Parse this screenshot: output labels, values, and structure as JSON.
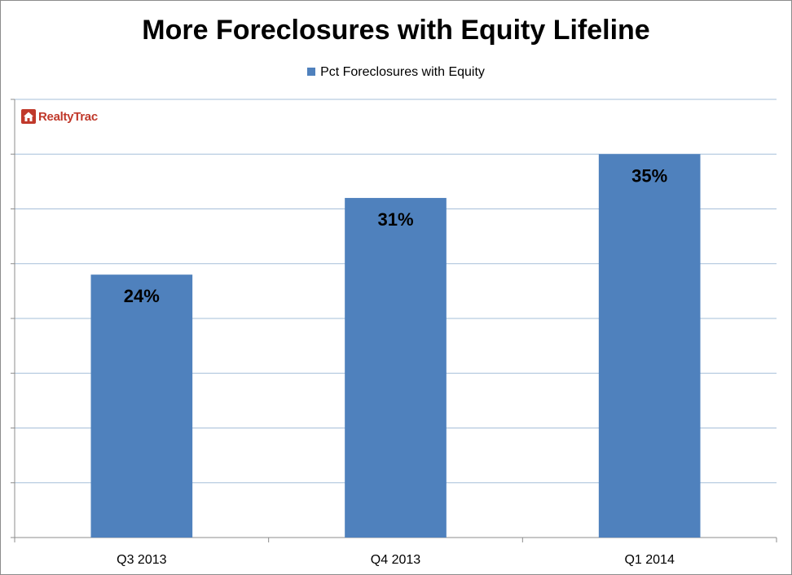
{
  "chart_data": {
    "type": "bar",
    "title": "More Foreclosures with Equity Lifeline",
    "categories": [
      "Q3 2013",
      "Q4 2013",
      "Q1 2014"
    ],
    "series": [
      {
        "name": "Pct Foreclosures with Equity",
        "values": [
          24,
          31,
          35
        ],
        "labels": [
          "24%",
          "31%",
          "35%"
        ],
        "color": "#4f81bd"
      }
    ],
    "ylim": [
      0,
      40
    ],
    "grid": true,
    "legend": "top-center",
    "source_logo": "RealtyTrac"
  }
}
